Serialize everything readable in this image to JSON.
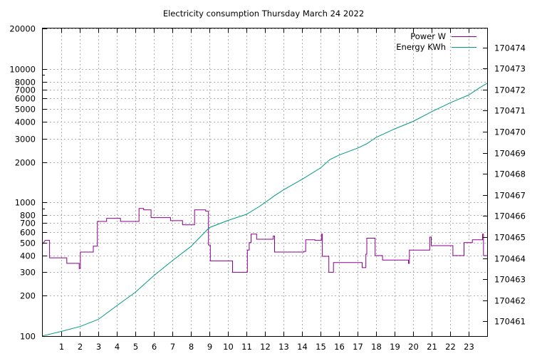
{
  "chart_data": {
    "type": "line",
    "title": "Electricity consumption Thursday March 24 2022",
    "xlabel": "",
    "ylabel": "",
    "y2label": "",
    "grid": true,
    "legend_placement": "top-right",
    "x_ticks": [
      "1",
      "2",
      "3",
      "4",
      "5",
      "6",
      "7",
      "8",
      "9",
      "10",
      "11",
      "12",
      "13",
      "14",
      "15",
      "16",
      "17",
      "18",
      "19",
      "20",
      "21",
      "22",
      "23"
    ],
    "xlim": [
      0,
      24
    ],
    "y_scale": "log",
    "ylim": [
      100,
      20000
    ],
    "y_ticks": [
      "100",
      "200",
      "300",
      "400",
      "500",
      "600",
      "700",
      "800",
      "1000",
      "2000",
      "3000",
      "4000",
      "5000",
      "6000",
      "7000",
      "8000",
      "10000",
      "20000"
    ],
    "y2lim": [
      170460.3,
      170474.9
    ],
    "y2_ticks": [
      "170461",
      "170462",
      "170463",
      "170464",
      "170465",
      "170466",
      "170467",
      "170468",
      "170469",
      "170470",
      "170471",
      "170472",
      "170473",
      "170474"
    ],
    "series": [
      {
        "name": "Power W",
        "axis": "left",
        "color": "#8b008b",
        "step": true,
        "points": [
          [
            0.0,
            490
          ],
          [
            0.13,
            520
          ],
          [
            0.37,
            520
          ],
          [
            0.37,
            385
          ],
          [
            1.3,
            385
          ],
          [
            1.3,
            350
          ],
          [
            1.97,
            350
          ],
          [
            1.97,
            320
          ],
          [
            2.03,
            320
          ],
          [
            2.03,
            425
          ],
          [
            2.73,
            425
          ],
          [
            2.73,
            470
          ],
          [
            2.95,
            470
          ],
          [
            2.95,
            720
          ],
          [
            3.45,
            720
          ],
          [
            3.45,
            760
          ],
          [
            4.2,
            760
          ],
          [
            4.2,
            720
          ],
          [
            5.2,
            720
          ],
          [
            5.2,
            900
          ],
          [
            5.45,
            900
          ],
          [
            5.45,
            880
          ],
          [
            5.85,
            880
          ],
          [
            5.85,
            770
          ],
          [
            6.9,
            770
          ],
          [
            6.9,
            730
          ],
          [
            7.55,
            730
          ],
          [
            7.55,
            680
          ],
          [
            8.2,
            680
          ],
          [
            8.2,
            880
          ],
          [
            8.8,
            880
          ],
          [
            8.8,
            860
          ],
          [
            8.95,
            860
          ],
          [
            8.95,
            480
          ],
          [
            9.05,
            480
          ],
          [
            9.05,
            365
          ],
          [
            10.25,
            365
          ],
          [
            10.25,
            300
          ],
          [
            11.05,
            300
          ],
          [
            11.05,
            440
          ],
          [
            11.15,
            440
          ],
          [
            11.15,
            500
          ],
          [
            11.25,
            500
          ],
          [
            11.25,
            580
          ],
          [
            11.55,
            580
          ],
          [
            11.55,
            530
          ],
          [
            12.45,
            530
          ],
          [
            12.45,
            560
          ],
          [
            12.52,
            560
          ],
          [
            12.52,
            425
          ],
          [
            14.1,
            425
          ],
          [
            14.1,
            430
          ],
          [
            14.2,
            430
          ],
          [
            14.2,
            525
          ],
          [
            14.7,
            525
          ],
          [
            14.7,
            520
          ],
          [
            15.05,
            520
          ],
          [
            15.05,
            580
          ],
          [
            15.1,
            580
          ],
          [
            15.1,
            395
          ],
          [
            15.45,
            395
          ],
          [
            15.45,
            300
          ],
          [
            15.7,
            300
          ],
          [
            15.7,
            355
          ],
          [
            17.25,
            355
          ],
          [
            17.25,
            325
          ],
          [
            17.45,
            325
          ],
          [
            17.45,
            410
          ],
          [
            17.5,
            410
          ],
          [
            17.5,
            540
          ],
          [
            17.95,
            540
          ],
          [
            17.95,
            400
          ],
          [
            18.35,
            400
          ],
          [
            18.35,
            370
          ],
          [
            19.75,
            370
          ],
          [
            19.75,
            350
          ],
          [
            19.8,
            350
          ],
          [
            19.8,
            440
          ],
          [
            20.9,
            440
          ],
          [
            20.9,
            550
          ],
          [
            20.98,
            550
          ],
          [
            20.98,
            475
          ],
          [
            22.15,
            475
          ],
          [
            22.15,
            400
          ],
          [
            22.75,
            400
          ],
          [
            22.75,
            500
          ],
          [
            23.2,
            500
          ],
          [
            23.2,
            525
          ],
          [
            23.75,
            525
          ],
          [
            23.75,
            580
          ],
          [
            23.8,
            580
          ],
          [
            23.8,
            400
          ],
          [
            24.0,
            400
          ]
        ]
      },
      {
        "name": "Energy KWh",
        "axis": "right",
        "color": "#009a80",
        "step": false,
        "points": [
          [
            0.0,
            170460.31
          ],
          [
            1.0,
            170460.52
          ],
          [
            2.0,
            170460.75
          ],
          [
            3.0,
            170461.09
          ],
          [
            4.0,
            170461.74
          ],
          [
            5.0,
            170462.38
          ],
          [
            6.0,
            170463.17
          ],
          [
            7.0,
            170463.88
          ],
          [
            8.0,
            170464.55
          ],
          [
            9.0,
            170465.45
          ],
          [
            10.0,
            170465.79
          ],
          [
            11.0,
            170466.08
          ],
          [
            11.7,
            170466.45
          ],
          [
            12.5,
            170466.95
          ],
          [
            13.0,
            170467.24
          ],
          [
            14.0,
            170467.74
          ],
          [
            15.0,
            170468.28
          ],
          [
            15.5,
            170468.67
          ],
          [
            16.0,
            170468.89
          ],
          [
            17.0,
            170469.22
          ],
          [
            17.5,
            170469.43
          ],
          [
            18.0,
            170469.73
          ],
          [
            19.0,
            170470.13
          ],
          [
            20.0,
            170470.49
          ],
          [
            21.0,
            170470.95
          ],
          [
            22.0,
            170471.37
          ],
          [
            23.0,
            170471.74
          ],
          [
            23.6,
            170472.09
          ],
          [
            24.0,
            170472.3
          ]
        ]
      }
    ]
  }
}
